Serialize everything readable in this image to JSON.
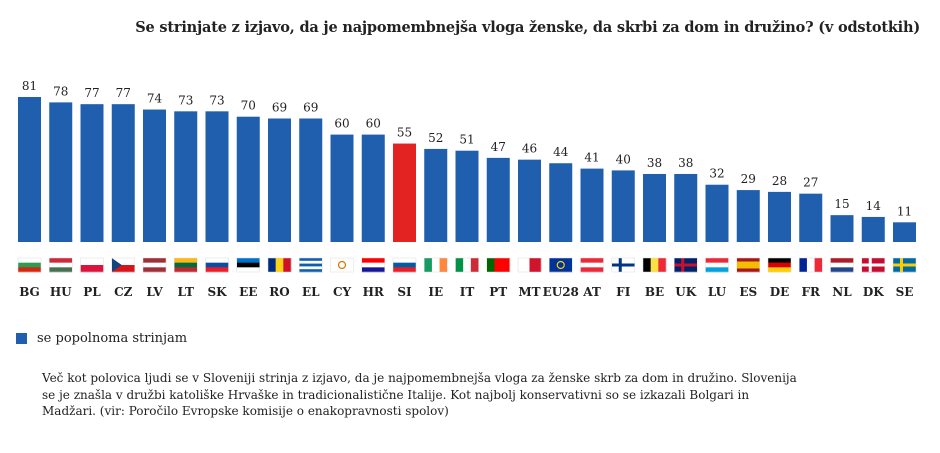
{
  "chart_data": {
    "type": "bar",
    "title": "Se strinjate z izjavo, da je najpomembnejša vloga ženske, da skrbi za dom in družino? (v odstotkih)",
    "categories": [
      "BG",
      "HU",
      "PL",
      "CZ",
      "LV",
      "LT",
      "SK",
      "EE",
      "RO",
      "EL",
      "CY",
      "HR",
      "SI",
      "IE",
      "IT",
      "PT",
      "MT",
      "EU28",
      "AT",
      "FI",
      "BE",
      "UK",
      "LU",
      "ES",
      "DE",
      "FR",
      "NL",
      "DK",
      "SE"
    ],
    "category_labels": [
      "BG",
      "HU",
      "PL",
      "CZ",
      "LV",
      "LT",
      "SK",
      "EE",
      "RO",
      "EL",
      "CY",
      "HR",
      "SI",
      "IE",
      "IT",
      "PT",
      "MT",
      "EU28",
      "AT",
      "FI",
      "BE",
      "UK",
      "LU",
      "ES",
      "DE",
      "FR",
      "NL",
      "DK",
      "SE"
    ],
    "values": [
      81,
      78,
      77,
      77,
      74,
      73,
      73,
      70,
      69,
      69,
      60,
      60,
      55,
      52,
      51,
      47,
      46,
      44,
      41,
      40,
      38,
      38,
      32,
      29,
      28,
      27,
      15,
      14,
      11
    ],
    "series": [
      {
        "name": "se popolnoma strinjam",
        "values": [
          81,
          78,
          77,
          77,
          74,
          73,
          73,
          70,
          69,
          69,
          60,
          60,
          55,
          52,
          51,
          47,
          46,
          44,
          41,
          40,
          38,
          38,
          32,
          29,
          28,
          27,
          15,
          14,
          11
        ]
      }
    ],
    "highlight": "SI",
    "ylim": [
      0,
      100
    ],
    "xlabel": "",
    "ylabel": "",
    "grid": false,
    "legend": "bottom-left"
  },
  "colors": {
    "bar": "#1f5fae",
    "highlight": "#e32322"
  },
  "flags": {
    "BG": {
      "dir": "h",
      "c": [
        "#ffffff",
        "#2e9a52",
        "#d62612"
      ]
    },
    "HU": {
      "dir": "h",
      "c": [
        "#ce2939",
        "#ffffff",
        "#477050"
      ]
    },
    "PL": {
      "dir": "h",
      "c": [
        "#ffffff",
        "#dc143c"
      ]
    },
    "CZ": {
      "dir": "h",
      "c": [
        "#ffffff",
        "#d7141a"
      ],
      "tri": "#11457e"
    },
    "LV": {
      "dir": "h",
      "c": [
        "#9e3039",
        "#ffffff",
        "#9e3039"
      ]
    },
    "LT": {
      "dir": "h",
      "c": [
        "#fdb913",
        "#006a44",
        "#c1272d"
      ]
    },
    "SK": {
      "dir": "h",
      "c": [
        "#ffffff",
        "#0b4ea2",
        "#ee1c25"
      ]
    },
    "EE": {
      "dir": "h",
      "c": [
        "#0072ce",
        "#000000",
        "#ffffff"
      ]
    },
    "RO": {
      "dir": "v",
      "c": [
        "#002b7f",
        "#fcd116",
        "#ce1126"
      ]
    },
    "EL": {
      "dir": "h",
      "c": [
        "#0d5eaf",
        "#ffffff",
        "#0d5eaf",
        "#ffffff",
        "#0d5eaf"
      ]
    },
    "CY": {
      "dir": "h",
      "c": [
        "#ffffff"
      ],
      "dot": "#d57800"
    },
    "HR": {
      "dir": "h",
      "c": [
        "#ff0000",
        "#ffffff",
        "#171796"
      ]
    },
    "SI": {
      "dir": "h",
      "c": [
        "#ffffff",
        "#005da4",
        "#ed1c24"
      ]
    },
    "IE": {
      "dir": "v",
      "c": [
        "#169b62",
        "#ffffff",
        "#ff883e"
      ]
    },
    "IT": {
      "dir": "v",
      "c": [
        "#009246",
        "#ffffff",
        "#ce2b37"
      ]
    },
    "PT": {
      "dir": "v",
      "c": [
        "#006600",
        "#ff0000",
        "#ff0000"
      ]
    },
    "MT": {
      "dir": "v",
      "c": [
        "#ffffff",
        "#cf142b"
      ]
    },
    "EU28": {
      "dir": "h",
      "c": [
        "#003399"
      ],
      "dot": "#ffcc00"
    },
    "AT": {
      "dir": "h",
      "c": [
        "#ed2939",
        "#ffffff",
        "#ed2939"
      ]
    },
    "FI": {
      "dir": "h",
      "c": [
        "#ffffff"
      ],
      "cross": "#003580"
    },
    "BE": {
      "dir": "v",
      "c": [
        "#000000",
        "#fae042",
        "#ed2939"
      ]
    },
    "UK": {
      "dir": "h",
      "c": [
        "#012169"
      ],
      "cross": "#c8102e"
    },
    "LU": {
      "dir": "h",
      "c": [
        "#ed2939",
        "#ffffff",
        "#00a1de"
      ]
    },
    "ES": {
      "dir": "h",
      "c": [
        "#aa151b",
        "#f1bf00",
        "#f1bf00",
        "#aa151b"
      ]
    },
    "DE": {
      "dir": "h",
      "c": [
        "#000000",
        "#dd0000",
        "#ffce00"
      ]
    },
    "FR": {
      "dir": "v",
      "c": [
        "#002395",
        "#ffffff",
        "#ed2939"
      ]
    },
    "NL": {
      "dir": "h",
      "c": [
        "#ae1c28",
        "#ffffff",
        "#21468b"
      ]
    },
    "DK": {
      "dir": "h",
      "c": [
        "#c60c30"
      ],
      "cross": "#ffffff"
    },
    "SE": {
      "dir": "h",
      "c": [
        "#006aa7"
      ],
      "cross": "#fecc00"
    }
  },
  "legend": {
    "label": "se popolnoma strinjam"
  },
  "caption": "Več kot polovica ljudi se v Sloveniji strinja z izjavo, da je najpomembnejša vloga za ženske skrb za dom in družino. Slovenija se je znašla v družbi katoliške Hrvaške in tradicionalistične Italije. Kot najbolj konservativni so se izkazali Bolgari in Madžari. (vir: Poročilo Evropske komisije o enakopravnosti spolov)"
}
